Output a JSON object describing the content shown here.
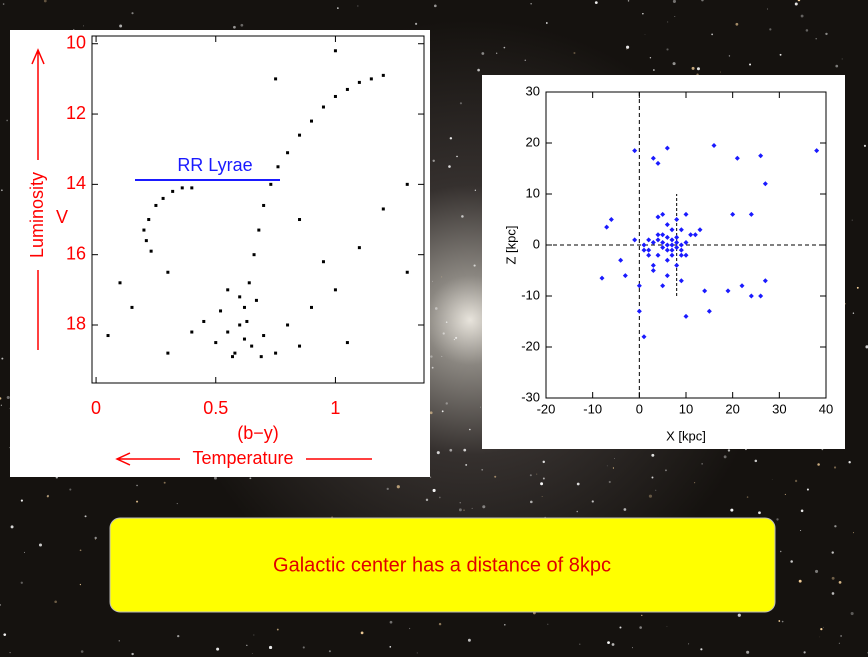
{
  "chart_data": [
    {
      "type": "scatter",
      "x_label": "(b−y)",
      "x_label_2": "Temperature",
      "y_label": "Luminosity",
      "y_label_2": "V",
      "annotation": "RR Lyrae",
      "color": "#000000",
      "annotation_color": "#1a1aff",
      "label_color": "#ff0000",
      "xlim": [
        -0.017,
        1.37
      ],
      "ylim": [
        19.65,
        9.78
      ],
      "xticks": [
        0,
        0.5,
        1
      ],
      "yticks": [
        10,
        12,
        14,
        16,
        18
      ],
      "x": [
        0.62,
        0.64,
        0.66,
        0.68,
        0.7,
        0.73,
        0.76,
        0.8,
        0.85,
        0.9,
        0.95,
        1.0,
        1.05,
        1.1,
        1.15,
        1.2,
        0.2,
        0.22,
        0.25,
        0.28,
        0.32,
        0.36,
        0.4,
        0.5,
        0.55,
        0.6,
        0.58,
        0.65,
        0.7,
        0.52,
        0.62,
        0.75,
        0.8,
        0.9,
        1.0,
        0.45,
        0.85,
        0.1,
        0.15,
        0.3,
        0.4,
        0.95,
        1.1,
        1.2,
        1.3,
        0.05,
        0.3,
        1.05,
        1.3,
        0.85,
        0.75,
        1.0,
        0.57,
        0.6,
        0.63,
        0.55,
        0.67,
        0.69,
        0.21,
        0.23
      ],
      "values": [
        17.5,
        16.8,
        16.0,
        15.3,
        14.6,
        14.0,
        13.5,
        13.1,
        12.6,
        12.2,
        11.8,
        11.5,
        11.3,
        11.1,
        11.0,
        10.9,
        15.3,
        15.0,
        14.6,
        14.4,
        14.2,
        14.1,
        14.1,
        18.5,
        18.2,
        18.0,
        18.8,
        18.6,
        18.3,
        17.6,
        18.4,
        18.8,
        18.0,
        17.5,
        17.0,
        17.9,
        18.6,
        16.8,
        17.5,
        16.5,
        18.2,
        16.2,
        15.8,
        14.7,
        14.0,
        18.3,
        18.8,
        18.5,
        16.5,
        15.0,
        11.0,
        10.2,
        18.9,
        17.2,
        17.9,
        17.0,
        17.3,
        18.9,
        15.6,
        15.9
      ]
    },
    {
      "type": "scatter",
      "x_label": "X [kpc]",
      "y_label": "Z [kpc]",
      "color": "#1a1aff",
      "xlim": [
        -20,
        40
      ],
      "ylim": [
        -30,
        30
      ],
      "xticks": [
        -20,
        -10,
        0,
        10,
        20,
        30,
        40
      ],
      "yticks": [
        -30,
        -20,
        -10,
        0,
        10,
        20,
        30
      ],
      "galactic_center": {
        "x": 8,
        "z_range": [
          -10,
          10
        ]
      },
      "x": [
        -1,
        3,
        4,
        6,
        16,
        21,
        26,
        38,
        -7,
        -6,
        -8,
        -4,
        1,
        2,
        3,
        4,
        5,
        5,
        6,
        6,
        7,
        7,
        7,
        8,
        8,
        8,
        9,
        9,
        10,
        10,
        4,
        5,
        6,
        7,
        8,
        9,
        11,
        12,
        13,
        2,
        3,
        6,
        9,
        10,
        15,
        19,
        22,
        24,
        26,
        27,
        27,
        10,
        14,
        0,
        0,
        1,
        3,
        5,
        -3,
        -1,
        4,
        6,
        7,
        8,
        9,
        2,
        4,
        5,
        6,
        1,
        20,
        24
      ],
      "values": [
        18.5,
        17,
        16,
        19,
        19.5,
        17,
        17.5,
        18.5,
        3.5,
        5,
        -6.5,
        -3,
        0,
        -1,
        0.5,
        1,
        -0.5,
        0.5,
        0,
        1.5,
        -1,
        0,
        1,
        -0.5,
        0.5,
        1.5,
        0,
        -1,
        0.5,
        -2,
        5.5,
        6,
        4,
        3,
        5,
        3,
        2,
        2,
        3,
        -2,
        -4,
        -6,
        -7,
        -14,
        -13,
        -9,
        -8,
        -10,
        -10,
        -7,
        12,
        6,
        -9,
        -13,
        -8,
        -18,
        -5,
        -8,
        -6,
        1,
        -2,
        -3,
        -2,
        -4,
        -2,
        1,
        2,
        2,
        -1,
        -1,
        6,
        6
      ]
    }
  ],
  "callout": "Galactic center has a distance of 8kpc"
}
